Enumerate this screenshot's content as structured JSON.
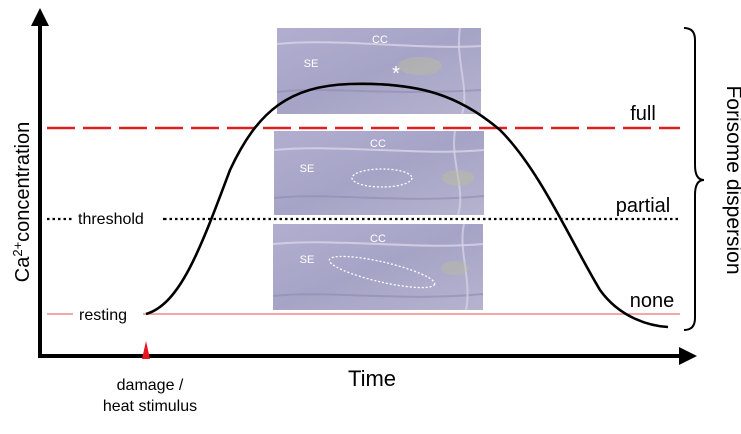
{
  "ylabel_prefix": "Ca",
  "ylabel_sup": "2+",
  "ylabel_suffix": "concentration",
  "xlabel": "Time",
  "threshold_label": "threshold",
  "resting_label": "resting",
  "stimulus_line1": "damage /",
  "stimulus_line2": "heat stimulus",
  "brace_label": "Forisome dispersion",
  "level_full": "full",
  "level_partial": "partial",
  "level_none": "none",
  "micro": {
    "cc": "CC",
    "se": "SE",
    "star": "*"
  },
  "colors": {
    "full_line": "#e02020",
    "resting_line": "#f08a8a",
    "stimulus": "#e8141e",
    "curve": "#000000",
    "micrograph_bg": "#a9a7c9"
  }
}
